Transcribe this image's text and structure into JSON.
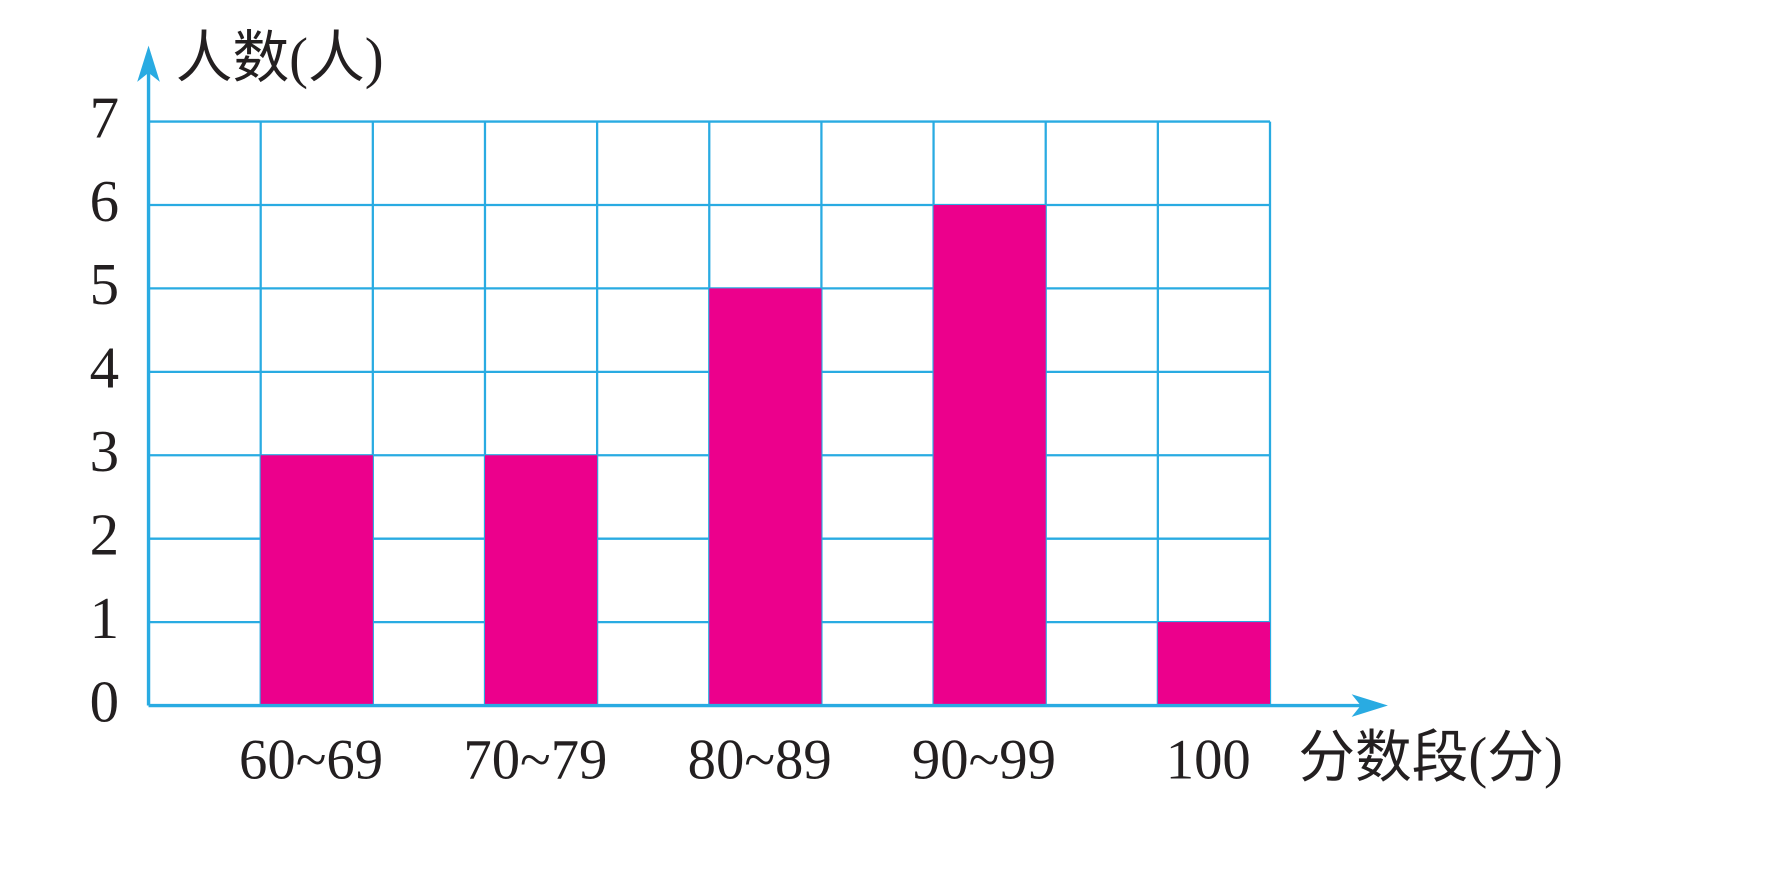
{
  "chart_data": {
    "type": "bar",
    "y_label": "人数(人)",
    "x_label": "分数段(分)",
    "categories": [
      "60~69",
      "70~79",
      "80~89",
      "90~99",
      "100"
    ],
    "values": [
      3,
      3,
      5,
      6,
      1
    ],
    "color": "#ec008c",
    "grid_color": "#29abe2",
    "ylim": [
      0,
      7
    ],
    "yticks": [
      0,
      1,
      2,
      3,
      4,
      5,
      6,
      7
    ],
    "grid": true
  }
}
